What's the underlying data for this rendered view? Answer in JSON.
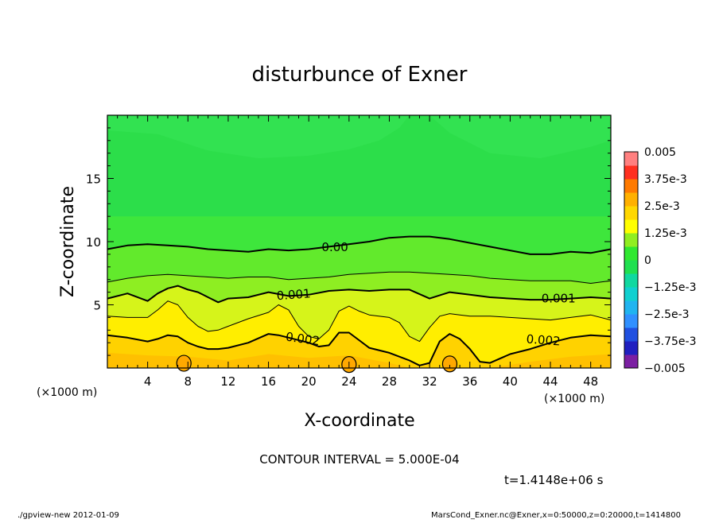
{
  "chart_data": {
    "type": "contour",
    "title": "disturbunce of Exner",
    "xlabel": "X-coordinate",
    "ylabel": "Z-coordinate",
    "x_unit_label": "(×1000 m)",
    "y_unit_label": "(×1000 m)",
    "xlim": [
      0,
      50
    ],
    "ylim": [
      0,
      20
    ],
    "xticks": [
      4,
      8,
      12,
      16,
      20,
      24,
      28,
      32,
      36,
      40,
      44,
      48
    ],
    "yticks": [
      5,
      10,
      15
    ],
    "contour_interval_text": "CONTOUR INTERVAL = 5.000E-04",
    "time_text": "t=1.4148e+06 s",
    "contour_labels": [
      "0.00",
      "0.001",
      "0.001",
      "0.002",
      "0.002"
    ],
    "colorbar": {
      "ticks": [
        "0.005",
        "3.75e-3",
        "2.5e-3",
        "1.25e-3",
        "0",
        "−1.25e-3",
        "−2.5e-3",
        "−3.75e-3",
        "−0.005"
      ],
      "min": -0.005,
      "max": 0.005,
      "levels": 16,
      "colors_bottom_to_top": [
        "#7b1fa2",
        "#2020c0",
        "#2050e0",
        "#3090ff",
        "#20b4f0",
        "#10d0d0",
        "#10d8a0",
        "#20e050",
        "#30e830",
        "#90ee20",
        "#ffff00",
        "#ffd700",
        "#ffb000",
        "#ff7a00",
        "#ff3020",
        "#ff8080"
      ]
    },
    "contours": {
      "0.000": [
        [
          0,
          9.4
        ],
        [
          2,
          9.7
        ],
        [
          4,
          9.8
        ],
        [
          6,
          9.7
        ],
        [
          8,
          9.6
        ],
        [
          10,
          9.4
        ],
        [
          12,
          9.3
        ],
        [
          14,
          9.2
        ],
        [
          16,
          9.4
        ],
        [
          18,
          9.3
        ],
        [
          20,
          9.4
        ],
        [
          22,
          9.6
        ],
        [
          24,
          9.8
        ],
        [
          26,
          10.0
        ],
        [
          28,
          10.3
        ],
        [
          30,
          10.4
        ],
        [
          32,
          10.4
        ],
        [
          34,
          10.2
        ],
        [
          36,
          9.9
        ],
        [
          38,
          9.6
        ],
        [
          40,
          9.3
        ],
        [
          42,
          9.0
        ],
        [
          44,
          9.0
        ],
        [
          46,
          9.2
        ],
        [
          48,
          9.1
        ],
        [
          50,
          9.4
        ]
      ],
      "0.0005": [
        [
          0,
          6.8
        ],
        [
          2,
          7.1
        ],
        [
          4,
          7.3
        ],
        [
          6,
          7.4
        ],
        [
          8,
          7.3
        ],
        [
          10,
          7.2
        ],
        [
          12,
          7.1
        ],
        [
          14,
          7.2
        ],
        [
          16,
          7.2
        ],
        [
          18,
          7.0
        ],
        [
          20,
          7.1
        ],
        [
          22,
          7.2
        ],
        [
          24,
          7.4
        ],
        [
          26,
          7.5
        ],
        [
          28,
          7.6
        ],
        [
          30,
          7.6
        ],
        [
          32,
          7.5
        ],
        [
          34,
          7.4
        ],
        [
          36,
          7.3
        ],
        [
          38,
          7.1
        ],
        [
          40,
          7.0
        ],
        [
          42,
          6.9
        ],
        [
          44,
          6.9
        ],
        [
          46,
          6.9
        ],
        [
          48,
          6.7
        ],
        [
          50,
          6.9
        ]
      ],
      "0.001": [
        [
          0,
          5.5
        ],
        [
          2,
          5.9
        ],
        [
          4,
          5.3
        ],
        [
          5,
          5.9
        ],
        [
          6,
          6.3
        ],
        [
          7,
          6.5
        ],
        [
          8,
          6.2
        ],
        [
          9,
          6.0
        ],
        [
          10,
          5.6
        ],
        [
          11,
          5.2
        ],
        [
          12,
          5.5
        ],
        [
          14,
          5.6
        ],
        [
          16,
          6.0
        ],
        [
          18,
          5.7
        ],
        [
          20,
          5.8
        ],
        [
          22,
          6.1
        ],
        [
          24,
          6.2
        ],
        [
          26,
          6.1
        ],
        [
          28,
          6.2
        ],
        [
          30,
          6.2
        ],
        [
          32,
          5.5
        ],
        [
          34,
          6.0
        ],
        [
          36,
          5.8
        ],
        [
          38,
          5.6
        ],
        [
          40,
          5.5
        ],
        [
          42,
          5.4
        ],
        [
          44,
          5.4
        ],
        [
          46,
          5.5
        ],
        [
          48,
          5.6
        ],
        [
          50,
          5.5
        ]
      ],
      "0.0015": [
        [
          0,
          4.1
        ],
        [
          2,
          4.0
        ],
        [
          4,
          4.0
        ],
        [
          5,
          4.6
        ],
        [
          6,
          5.3
        ],
        [
          7,
          5.0
        ],
        [
          8,
          4.0
        ],
        [
          9,
          3.3
        ],
        [
          10,
          2.9
        ],
        [
          11,
          3.0
        ],
        [
          12,
          3.3
        ],
        [
          14,
          3.9
        ],
        [
          16,
          4.4
        ],
        [
          17,
          5.0
        ],
        [
          18,
          4.6
        ],
        [
          19,
          3.3
        ],
        [
          20,
          2.5
        ],
        [
          21,
          2.3
        ],
        [
          22,
          3.0
        ],
        [
          23,
          4.5
        ],
        [
          24,
          4.9
        ],
        [
          25,
          4.5
        ],
        [
          26,
          4.2
        ],
        [
          28,
          4.0
        ],
        [
          29,
          3.6
        ],
        [
          30,
          2.5
        ],
        [
          31,
          2.1
        ],
        [
          32,
          3.2
        ],
        [
          33,
          4.1
        ],
        [
          34,
          4.3
        ],
        [
          35,
          4.2
        ],
        [
          36,
          4.1
        ],
        [
          38,
          4.1
        ],
        [
          40,
          4.0
        ],
        [
          42,
          3.9
        ],
        [
          44,
          3.8
        ],
        [
          46,
          4.0
        ],
        [
          48,
          4.2
        ],
        [
          50,
          3.8
        ]
      ],
      "0.002": [
        [
          0,
          2.6
        ],
        [
          2,
          2.4
        ],
        [
          4,
          2.1
        ],
        [
          5,
          2.3
        ],
        [
          6,
          2.6
        ],
        [
          7,
          2.5
        ],
        [
          8,
          2.0
        ],
        [
          9,
          1.7
        ],
        [
          10,
          1.5
        ],
        [
          11,
          1.5
        ],
        [
          12,
          1.6
        ],
        [
          14,
          2.0
        ],
        [
          16,
          2.7
        ],
        [
          17,
          2.6
        ],
        [
          18,
          2.4
        ],
        [
          20,
          2.0
        ],
        [
          21,
          1.7
        ],
        [
          22,
          1.8
        ],
        [
          23,
          2.8
        ],
        [
          24,
          2.8
        ],
        [
          25,
          2.2
        ],
        [
          26,
          1.6
        ],
        [
          28,
          1.2
        ],
        [
          30,
          0.6
        ],
        [
          31,
          0.2
        ],
        [
          32,
          0.4
        ],
        [
          33,
          2.1
        ],
        [
          34,
          2.7
        ],
        [
          35,
          2.3
        ],
        [
          36,
          1.5
        ],
        [
          37,
          0.5
        ],
        [
          38,
          0.4
        ],
        [
          40,
          1.1
        ],
        [
          42,
          1.5
        ],
        [
          44,
          2.0
        ],
        [
          46,
          2.4
        ],
        [
          48,
          2.6
        ],
        [
          50,
          2.5
        ]
      ]
    },
    "closed_contours_0.0025": [
      [
        7.6,
        0.5
      ],
      [
        24.0,
        0.4
      ],
      [
        34.0,
        0.45
      ]
    ]
  },
  "footer": {
    "left": "./gpview-new   2012-01-09",
    "right": "MarsCond_Exner.nc@Exner,x=0:50000,z=0:20000,t=1414800"
  }
}
